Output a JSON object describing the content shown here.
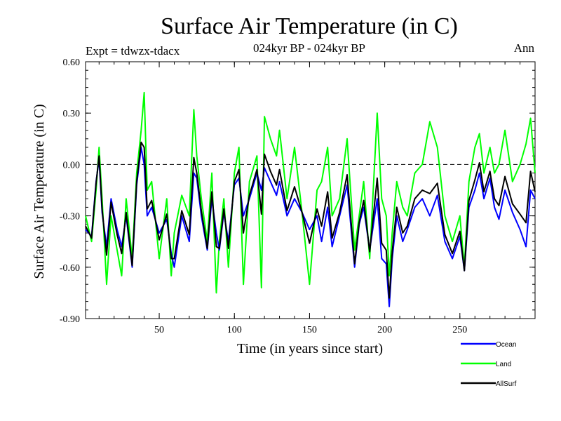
{
  "chart_data": {
    "type": "line",
    "title": "Surface Air Temperature (in C)",
    "subtitle": "024kyr BP - 024kyr BP",
    "experiment": "Expt = tdwzx-tdacx",
    "period": "Ann",
    "xlabel": "Time (in years since start)",
    "ylabel": "Surface Air Temperature (in C)",
    "xlim": [
      1,
      300
    ],
    "ylim": [
      -0.9,
      0.6
    ],
    "x_ticks": [
      50,
      100,
      150,
      200,
      250
    ],
    "y_ticks": [
      -0.9,
      -0.6,
      -0.3,
      0.0,
      0.3,
      0.6
    ],
    "y_tick_labels": [
      "-0.90",
      "-0.60",
      "-0.30",
      "0.00",
      "0.30",
      "0.60"
    ],
    "zero_line": true,
    "legend_position": "bottom-right",
    "series": [
      {
        "name": "Ocean",
        "color": "#0000ff",
        "x": [
          1,
          5,
          8,
          10,
          12,
          15,
          18,
          22,
          25,
          28,
          32,
          35,
          38,
          40,
          42,
          45,
          50,
          55,
          58,
          60,
          65,
          70,
          73,
          75,
          78,
          82,
          85,
          88,
          90,
          93,
          96,
          100,
          103,
          106,
          110,
          115,
          118,
          120,
          124,
          128,
          130,
          135,
          140,
          145,
          150,
          155,
          158,
          162,
          165,
          170,
          175,
          180,
          183,
          186,
          190,
          195,
          198,
          201,
          203,
          205,
          208,
          212,
          215,
          220,
          225,
          230,
          235,
          240,
          245,
          250,
          253,
          256,
          260,
          263,
          266,
          270,
          273,
          276,
          280,
          285,
          290,
          294,
          297,
          300
        ],
        "values": [
          -0.38,
          -0.42,
          -0.1,
          0.03,
          -0.28,
          -0.48,
          -0.2,
          -0.38,
          -0.48,
          -0.3,
          -0.6,
          -0.12,
          0.1,
          0.0,
          -0.3,
          -0.25,
          -0.4,
          -0.32,
          -0.52,
          -0.6,
          -0.3,
          -0.45,
          -0.05,
          -0.08,
          -0.3,
          -0.5,
          -0.2,
          -0.4,
          -0.5,
          -0.28,
          -0.45,
          -0.12,
          -0.08,
          -0.3,
          -0.2,
          -0.05,
          -0.15,
          -0.02,
          -0.1,
          -0.18,
          -0.1,
          -0.3,
          -0.2,
          -0.28,
          -0.38,
          -0.3,
          -0.45,
          -0.25,
          -0.48,
          -0.3,
          -0.12,
          -0.6,
          -0.35,
          -0.25,
          -0.5,
          -0.2,
          -0.55,
          -0.58,
          -0.83,
          -0.55,
          -0.3,
          -0.45,
          -0.38,
          -0.25,
          -0.2,
          -0.3,
          -0.18,
          -0.45,
          -0.55,
          -0.42,
          -0.62,
          -0.25,
          -0.15,
          -0.05,
          -0.2,
          -0.08,
          -0.25,
          -0.32,
          -0.15,
          -0.28,
          -0.38,
          -0.48,
          -0.15,
          -0.2
        ]
      },
      {
        "name": "Land",
        "color": "#00ff00",
        "x": [
          1,
          5,
          8,
          10,
          12,
          15,
          18,
          22,
          25,
          28,
          32,
          35,
          38,
          40,
          42,
          45,
          50,
          55,
          58,
          60,
          65,
          70,
          73,
          75,
          78,
          82,
          85,
          88,
          90,
          93,
          96,
          100,
          103,
          106,
          110,
          115,
          118,
          120,
          124,
          128,
          130,
          135,
          140,
          145,
          150,
          155,
          158,
          162,
          165,
          170,
          175,
          180,
          183,
          186,
          190,
          195,
          198,
          201,
          203,
          205,
          208,
          212,
          215,
          220,
          225,
          230,
          235,
          240,
          245,
          250,
          253,
          256,
          260,
          263,
          266,
          270,
          273,
          276,
          280,
          285,
          290,
          294,
          297,
          300
        ],
        "values": [
          -0.3,
          -0.45,
          -0.15,
          0.1,
          -0.2,
          -0.7,
          -0.3,
          -0.5,
          -0.65,
          -0.2,
          -0.55,
          -0.05,
          0.2,
          0.42,
          -0.15,
          -0.1,
          -0.55,
          -0.2,
          -0.65,
          -0.4,
          -0.18,
          -0.3,
          0.32,
          0.05,
          -0.2,
          -0.45,
          -0.05,
          -0.75,
          -0.45,
          -0.2,
          -0.6,
          -0.05,
          0.1,
          -0.7,
          -0.1,
          0.05,
          -0.72,
          0.28,
          0.15,
          0.05,
          0.2,
          -0.2,
          0.1,
          -0.28,
          -0.7,
          -0.15,
          -0.1,
          0.1,
          -0.3,
          -0.2,
          0.15,
          -0.5,
          -0.3,
          -0.1,
          -0.55,
          0.3,
          -0.2,
          -0.3,
          -0.65,
          -0.4,
          -0.1,
          -0.25,
          -0.3,
          -0.05,
          0.0,
          0.25,
          0.1,
          -0.3,
          -0.45,
          -0.3,
          -0.6,
          -0.1,
          0.1,
          0.18,
          -0.05,
          0.1,
          -0.05,
          0.0,
          0.2,
          -0.1,
          0.0,
          0.12,
          0.27,
          -0.05
        ]
      },
      {
        "name": "AllSurf",
        "color": "#000000",
        "x": [
          1,
          5,
          8,
          10,
          12,
          15,
          18,
          22,
          25,
          28,
          32,
          35,
          38,
          40,
          42,
          45,
          50,
          55,
          58,
          60,
          65,
          70,
          73,
          75,
          78,
          82,
          85,
          88,
          90,
          93,
          96,
          100,
          103,
          106,
          110,
          115,
          118,
          120,
          124,
          128,
          130,
          135,
          140,
          145,
          150,
          155,
          158,
          162,
          165,
          170,
          175,
          180,
          183,
          186,
          190,
          195,
          198,
          201,
          203,
          205,
          208,
          212,
          215,
          220,
          225,
          230,
          235,
          240,
          245,
          250,
          253,
          256,
          260,
          263,
          266,
          270,
          273,
          276,
          280,
          285,
          290,
          294,
          297,
          300
        ],
        "values": [
          -0.36,
          -0.43,
          -0.11,
          0.05,
          -0.26,
          -0.53,
          -0.22,
          -0.41,
          -0.52,
          -0.28,
          -0.59,
          -0.1,
          0.13,
          0.1,
          -0.26,
          -0.21,
          -0.44,
          -0.29,
          -0.55,
          -0.55,
          -0.27,
          -0.41,
          0.04,
          -0.05,
          -0.27,
          -0.49,
          -0.16,
          -0.48,
          -0.49,
          -0.26,
          -0.49,
          -0.1,
          -0.03,
          -0.4,
          -0.18,
          -0.03,
          -0.29,
          0.06,
          -0.04,
          -0.12,
          -0.03,
          -0.27,
          -0.13,
          -0.28,
          -0.46,
          -0.26,
          -0.36,
          -0.16,
          -0.43,
          -0.28,
          -0.06,
          -0.58,
          -0.34,
          -0.21,
          -0.51,
          -0.08,
          -0.46,
          -0.5,
          -0.78,
          -0.51,
          -0.25,
          -0.4,
          -0.36,
          -0.2,
          -0.15,
          -0.17,
          -0.11,
          -0.41,
          -0.52,
          -0.39,
          -0.62,
          -0.21,
          -0.09,
          0.01,
          -0.16,
          -0.04,
          -0.2,
          -0.24,
          -0.07,
          -0.23,
          -0.29,
          -0.34,
          -0.04,
          -0.16
        ]
      }
    ]
  }
}
